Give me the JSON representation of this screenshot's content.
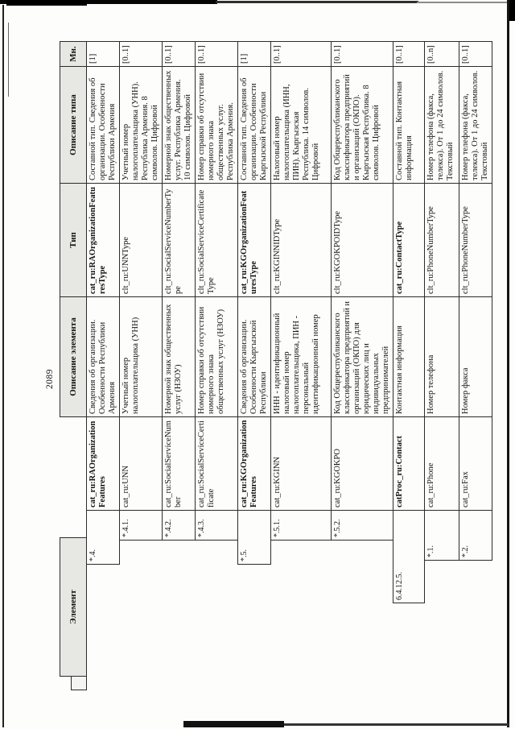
{
  "page_number": "2089",
  "table": {
    "columns": [
      "Элемент",
      "Описание элемента",
      "Тип",
      "Описание типа",
      "Мн."
    ],
    "rows": [
      {
        "num": "*.4.",
        "name": "cat_ru:RAOrganizationFeatures",
        "name_bold": true,
        "indent": 156,
        "desc": "Сведения об организации. Особенности Республики Армения",
        "type": "cat_ru:RAOrganizationFeaturesType",
        "type_bold": true,
        "type_desc": "Составной тип. Сведения об организации. Особенности Республики Армения",
        "mult": "[1]"
      },
      {
        "num": "*.4.1.",
        "name": "cat_ru:UNN",
        "name_bold": false,
        "indent": 186,
        "desc": "Учетный номер налогоплательщика (УНН)",
        "type": "clt_ru:UNNType",
        "type_bold": false,
        "type_desc": "Учетный номер налогоплательщика (УНН). Республика Армения. 8 символов. Цифровой",
        "mult": "[0..1]"
      },
      {
        "num": "*.4.2.",
        "name": "cat_ru:SocialServiceNumber",
        "name_bold": false,
        "indent": 186,
        "desc": "Номерной знак общественных услуг (НЗОУ)",
        "type": "clt_ru:SocialServiceNumberType",
        "type_bold": false,
        "type_desc": "Номерной знак общественных услуг. Республика Армения. 10 символов. Цифровой",
        "mult": "[0..1]"
      },
      {
        "num": "*.4.3.",
        "name": "cat_ru:SocialServiceCertificate",
        "name_bold": false,
        "indent": 186,
        "desc": "Номер справки об отсутствии номерного знака общественных услуг (НЗОУ)",
        "type": "clt_ru:SocialServiceCertificateType",
        "type_bold": false,
        "type_desc": "Номер справки об отсутствии номерного знака общественных услуг. Республика Армения.",
        "mult": "[0..1]"
      },
      {
        "num": "*.5.",
        "name": "cat_ru:KGOrganizationFeatures",
        "name_bold": true,
        "indent": 156,
        "desc": "Сведения об организации. Особенности Кыргызской Республики",
        "type": "cat_ru:KGOrganizationFeaturesType",
        "type_bold": true,
        "type_desc": "Составной тип. Сведения об организации. Особенности Кыргызской Республики",
        "mult": "[1]"
      },
      {
        "num": "*.5.1.",
        "name": "cat_ru:KGINN",
        "name_bold": false,
        "indent": 186,
        "desc": "ИНН - идентификационный налоговый номер налогоплательщика, ПИН - персональный идентификационный номер",
        "type": "clt_ru:KGINNIDType",
        "type_bold": false,
        "type_desc": "Налоговый номер налогоплательщика (ИНН, ПИН). Кыргызская Республика. 14 символов. Цифровой",
        "mult": "[0..1]"
      },
      {
        "num": "*.5.2.",
        "name": "cat_ru:KGOKPO",
        "name_bold": false,
        "indent": 186,
        "desc": "Код Общереспубликанского классификатора предприятий и организаций (ОКПО) для юридических лиц и индивидуальных предпринимателей",
        "type": "clt_ru:KGOKPOIDType",
        "type_bold": false,
        "type_desc": "Код Общереспубликанского классификатора предприятий и организаций (ОКПО). Кыргызская Республика. 8 символов. Цифровой",
        "mult": "[0..1]"
      },
      {
        "num": "6.4.12.5.",
        "name": "catProc_ru:Contact",
        "name_bold": true,
        "indent": 108,
        "desc": "Контактная информация",
        "type": "cat_ru:ContactType",
        "type_bold": true,
        "type_desc": "Составной тип. Контактная информация",
        "mult": "[0..1]"
      },
      {
        "num": "*.1.",
        "name": "cat_ru:Phone",
        "name_bold": false,
        "indent": 161,
        "desc": "Номер телефона",
        "type": "clt_ru:PhoneNumberType",
        "type_bold": false,
        "type_desc": "Номер телефона (факса, телекса). От 1 до 24 символов. Текстовый",
        "mult": "[0..n]"
      },
      {
        "num": "*.2.",
        "name": "cat_ru:Fax",
        "name_bold": false,
        "indent": 161,
        "desc": "Номер факса",
        "type": "clt_ru:PhoneNumberType",
        "type_bold": false,
        "type_desc": "Номер телефона (факса, телекса). От 1 до 24 символов. Текстовый",
        "mult": "[0..1]"
      }
    ]
  }
}
